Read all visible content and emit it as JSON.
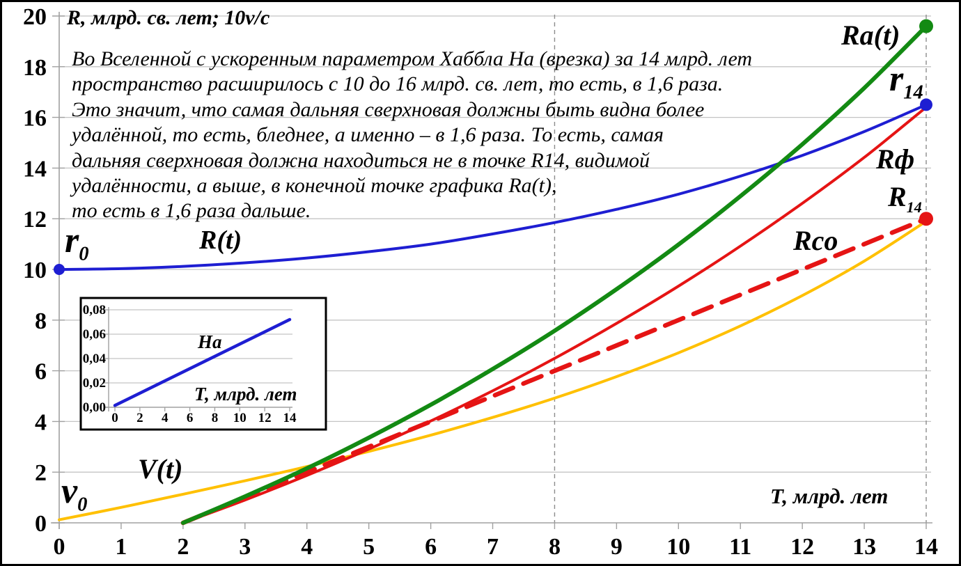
{
  "figure": {
    "y_axis_title": "R, млрд. св. лет; 10v/c",
    "x_axis_title": "Т, млрд. лет",
    "annotation": {
      "lines": [
        "Во Вселенной с ускоренным параметром Хаббла На (врезка) за 14 млрд. лет",
        "пространство расширилось с 10 до 16 млрд. св. лет, то есть, в 1,6 раза.",
        "Это значит, что самая дальняя сверхновая должны быть видна более",
        "удалённой, то есть, бледнее, а именно – в 1,6 раза. То есть, самая",
        "дальняя сверхновая должна находиться не в точке R14, видимой",
        "удалённости, а выше, в конечной точке графика Ra(t),",
        "то есть в 1,6 раза дальше."
      ]
    }
  },
  "curve_labels": {
    "R_t": "R(t)",
    "Ra_t": "Ra(t)",
    "R_phi": "Rф",
    "Rco": "Rco",
    "V_t": "V(t)",
    "r0": {
      "main": "r",
      "sub": "0"
    },
    "r14": {
      "main": "r",
      "sub": "14"
    },
    "R14": {
      "main": "R",
      "sub": "14"
    },
    "v0": {
      "main": "v",
      "sub": "0"
    }
  },
  "inset": {
    "title": "На",
    "x_axis_title": "Т, млрд. лет"
  },
  "colors": {
    "blue": "#1e1ed2",
    "green": "#138a13",
    "red": "#e51414",
    "yellow": "#ffc000",
    "grid": "#c4c4c4",
    "axis": "#a0a0a0",
    "guide": "#8c8c8c",
    "text": "#000000"
  },
  "chart_data": [
    {
      "type": "line",
      "title": "",
      "xlabel": "Т, млрд. лет",
      "ylabel": "R, млрд. св. лет; 10v/c",
      "xlim": [
        0,
        14
      ],
      "ylim": [
        0,
        20
      ],
      "x_ticks": [
        0,
        1,
        2,
        3,
        4,
        5,
        6,
        7,
        8,
        9,
        10,
        11,
        12,
        13,
        14
      ],
      "y_ticks": [
        0,
        2,
        4,
        6,
        8,
        10,
        12,
        14,
        16,
        18,
        20
      ],
      "grid": "horizontal solid every 2 units",
      "vertical_guides": [
        8,
        14
      ],
      "legend_position": "labels on chart",
      "series": [
        {
          "key": "R_t",
          "name": "R(t)",
          "color_key": "blue",
          "dash": "none",
          "width": 4,
          "x": [
            0,
            1,
            2,
            3,
            4,
            5,
            6,
            7,
            8,
            9,
            10,
            11,
            12,
            13,
            14
          ],
          "y": [
            10,
            10.03,
            10.12,
            10.26,
            10.45,
            10.7,
            11.0,
            11.4,
            11.85,
            12.37,
            12.97,
            13.68,
            14.5,
            15.44,
            16.5
          ]
        },
        {
          "key": "V_t",
          "name": "V(t)",
          "color_key": "yellow",
          "dash": "none",
          "width": 4,
          "x": [
            0,
            1,
            2,
            3,
            4,
            5,
            6,
            7,
            8,
            9,
            10,
            11,
            12,
            13,
            14
          ],
          "y": [
            0.12,
            0.61,
            1.13,
            1.66,
            2.22,
            2.82,
            3.46,
            4.16,
            4.92,
            5.77,
            6.71,
            7.77,
            8.97,
            10.33,
            11.9
          ]
        },
        {
          "key": "Rco",
          "name": "Rco",
          "color_key": "red",
          "dash": "long",
          "width": 6.5,
          "x": [
            2,
            14
          ],
          "y": [
            0,
            12
          ]
        },
        {
          "key": "R_phi",
          "name": "Rф",
          "color_key": "red",
          "dash": "none",
          "width": 4,
          "x": [
            2,
            3,
            4,
            5,
            6,
            7,
            8,
            9,
            10,
            11,
            12,
            13,
            14
          ],
          "y": [
            0,
            0.9,
            1.87,
            2.91,
            4.02,
            5.21,
            6.49,
            7.87,
            9.34,
            10.92,
            12.61,
            14.42,
            16.4
          ]
        },
        {
          "key": "Ra_t",
          "name": "Ra(t)",
          "color_key": "green",
          "dash": "none",
          "width": 6,
          "x": [
            2,
            3,
            4,
            5,
            6,
            7,
            8,
            9,
            10,
            11,
            12,
            13,
            14
          ],
          "y": [
            0,
            1.04,
            2.15,
            3.36,
            4.66,
            6.07,
            7.58,
            9.22,
            10.98,
            12.89,
            14.94,
            17.16,
            19.6
          ]
        }
      ],
      "points": [
        {
          "name": "r0",
          "x": 0,
          "y": 10,
          "color_key": "blue",
          "r": 8
        },
        {
          "name": "r14",
          "x": 14,
          "y": 16.5,
          "color_key": "blue",
          "r": 9
        },
        {
          "name": "Ra14",
          "x": 14,
          "y": 19.6,
          "color_key": "green",
          "r": 10
        },
        {
          "name": "R14",
          "x": 14,
          "y": 12,
          "color_key": "red",
          "r": 10
        }
      ]
    },
    {
      "type": "line",
      "title": "На",
      "xlabel": "Т, млрд. лет",
      "xlim": [
        0,
        14
      ],
      "ylim": [
        0,
        0.08
      ],
      "x_ticks": [
        0,
        2,
        4,
        6,
        8,
        10,
        12,
        14
      ],
      "y_ticks": [
        0,
        0.02,
        0.04,
        0.06,
        0.08
      ],
      "y_tick_labels": [
        "0,00",
        "0,02",
        "0,04",
        "0,06",
        "0,08"
      ],
      "grid": "horizontal",
      "series": [
        {
          "key": "Ha",
          "name": "На",
          "color_key": "blue",
          "dash": "none",
          "width": 4.5,
          "x": [
            0,
            14
          ],
          "y": [
            0.0015,
            0.072
          ]
        }
      ]
    }
  ]
}
